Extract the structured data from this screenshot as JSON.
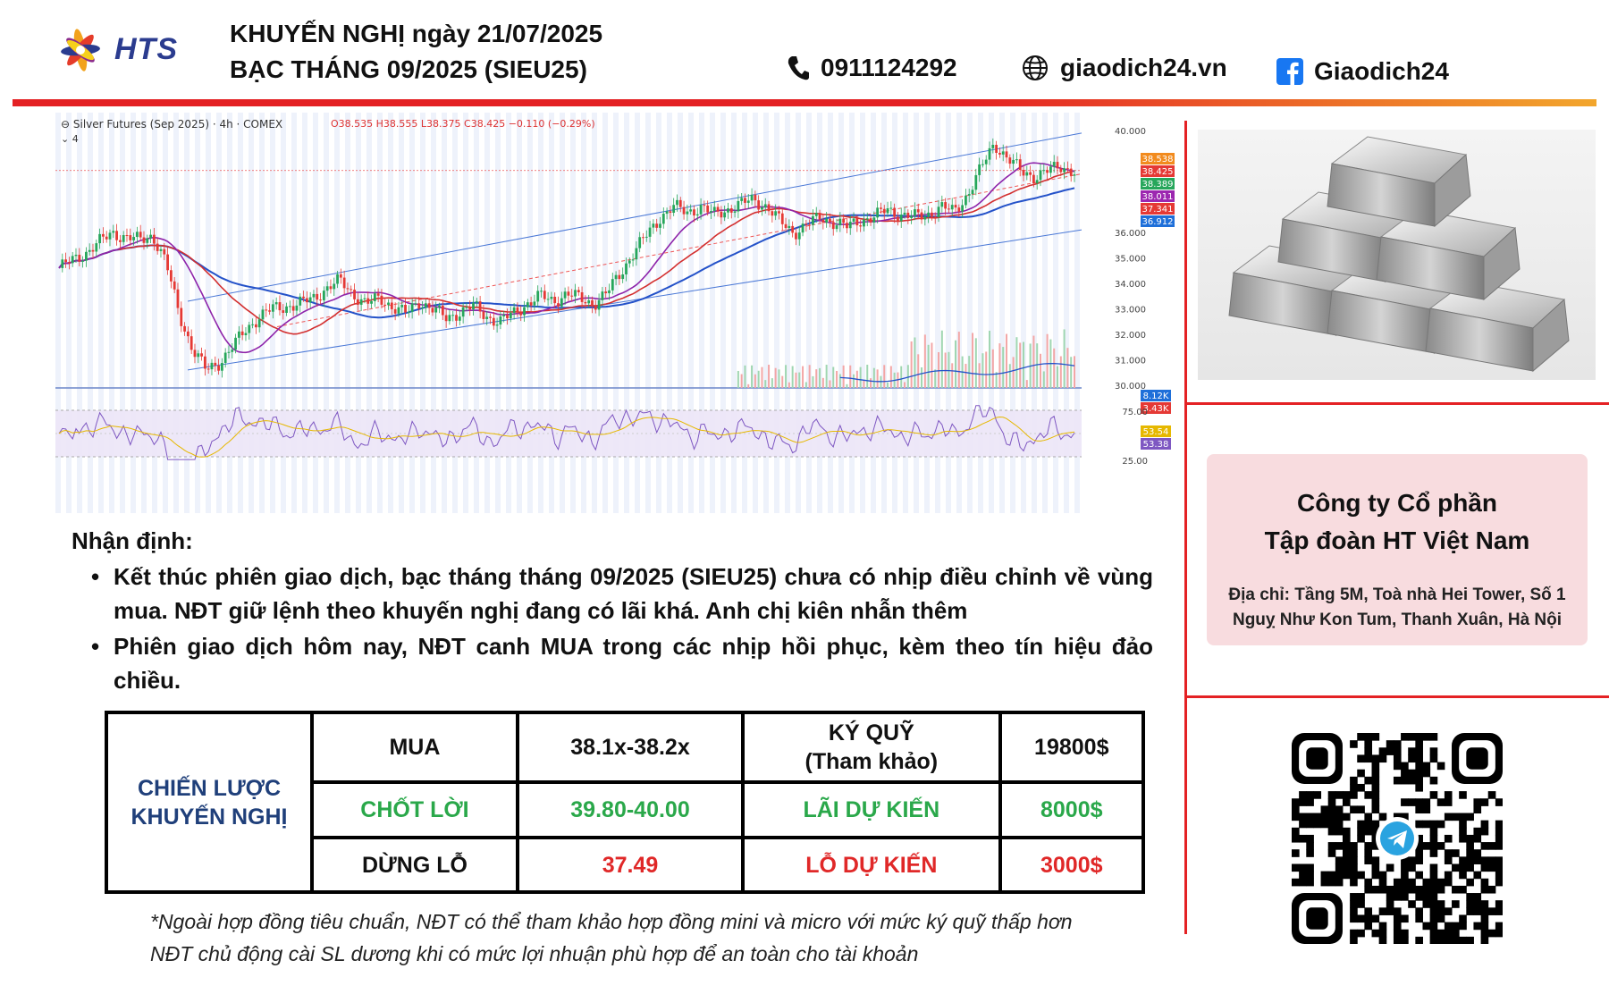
{
  "brand": {
    "logo_text": "HTS"
  },
  "header": {
    "title_line1": "KHUYẾN NGHỊ ngày 21/07/2025",
    "title_line2": "BẠC THÁNG 09/2025 (SIEU25)",
    "phone": "0911124292",
    "website": "giaodich24.vn",
    "facebook": "Giaodich24",
    "icons": [
      "phone-icon",
      "globe-icon",
      "facebook-icon"
    ]
  },
  "chart_data": {
    "type": "candlestick",
    "title": "Silver Futures (Sep 2025) · 4h · COMEX",
    "interval_label": "4",
    "ohlc": {
      "open": "O38.535",
      "high": "H38.555",
      "low": "L38.375",
      "close": "C38.425",
      "change": "−0.110 (−0.29%)"
    },
    "price_axis": [
      "40.000",
      "36.000",
      "35.000",
      "34.000",
      "33.000",
      "32.000",
      "31.000",
      "30.000"
    ],
    "price_labels": [
      {
        "value": "38.538",
        "color": "#f28b1e"
      },
      {
        "value": "38.425",
        "color": "#e53935"
      },
      {
        "value": "38.389",
        "color": "#26a65b"
      },
      {
        "value": "38.011",
        "color": "#9c27b0"
      },
      {
        "value": "37.341",
        "color": "#e53935"
      },
      {
        "value": "36.912",
        "color": "#1e6fd9"
      }
    ],
    "volume_labels": [
      {
        "value": "8.12K",
        "color": "#1e6fd9"
      },
      {
        "value": "3.43K",
        "color": "#e53935"
      }
    ],
    "rsi_axis": [
      "75.00",
      "25.00"
    ],
    "rsi_labels": [
      {
        "value": "53.54",
        "color": "#e6b800"
      },
      {
        "value": "53.38",
        "color": "#7e57c2"
      }
    ],
    "close_path": [
      34.6,
      34.9,
      35.2,
      35.6,
      36.0,
      35.8,
      35.7,
      35.9,
      34.8,
      32.8,
      31.4,
      30.6,
      30.9,
      31.5,
      32.2,
      32.7,
      33.0,
      33.1,
      33.2,
      33.4,
      33.8,
      34.1,
      33.6,
      33.2,
      33.4,
      33.1,
      32.8,
      33.3,
      33.0,
      32.6,
      32.9,
      33.1,
      32.7,
      32.5,
      32.8,
      33.2,
      33.5,
      33.3,
      33.6,
      33.4,
      33.2,
      33.6,
      34.4,
      35.2,
      35.9,
      36.6,
      37.0,
      36.8,
      37.0,
      36.7,
      36.9,
      37.1,
      37.3,
      37.0,
      36.4,
      36.0,
      36.3,
      36.6,
      36.4,
      36.2,
      36.5,
      36.6,
      36.9,
      36.7,
      36.6,
      36.7,
      37.0,
      36.8,
      37.5,
      38.5,
      39.5,
      38.9,
      38.4,
      38.2,
      38.4,
      38.6,
      38.4
    ]
  },
  "analysis": {
    "title": "Nhận định:",
    "bullets": [
      "Kết thúc phiên giao dịch, bạc tháng tháng 09/2025 (SIEU25) chưa có nhịp điều chỉnh về vùng mua. NĐT giữ lệnh theo khuyến nghị đang có lãi khá. Anh chị kiên nhẫn thêm",
      "Phiên giao dịch hôm nay, NĐT canh MUA trong các nhịp hồi phục, kèm theo tín hiệu đảo chiều."
    ]
  },
  "strategy": {
    "label_line1": "CHIẾN LƯỢC",
    "label_line2": "KHUYẾN NGHỊ",
    "buy_label": "MUA",
    "buy_range": "38.1x-38.2x",
    "margin_label_line1": "KÝ QUỸ",
    "margin_label_line2": "(Tham khảo)",
    "margin_value": "19800$",
    "take_profit_label": "CHỐT LỜI",
    "take_profit_range": "39.80-40.00",
    "expected_profit_label": "LÃI DỰ KIẾN",
    "expected_profit_value": "8000$",
    "stop_loss_label": "DỪNG LỖ",
    "stop_loss_value": "37.49",
    "expected_loss_label": "LỖ DỰ KIẾN",
    "expected_loss_value": "3000$"
  },
  "notes": [
    "*Ngoài hợp đồng tiêu chuẩn, NĐT có thể tham khảo hợp đồng mini và micro với mức ký quỹ thấp hơn",
    "NĐT chủ động cài SL dương khi có mức lợi nhuận phù hợp để an toàn cho tài khoản"
  ],
  "company": {
    "name_line1": "Công ty Cổ phần",
    "name_line2": "Tập đoàn HT Việt Nam",
    "address_line1": "Địa chỉ: Tầng 5M, Toà nhà Hei Tower, Số 1",
    "address_line2": "Nguỵ Như Kon Tum, Thanh Xuân, Hà Nội"
  },
  "images": {
    "product": "silver-bars-image",
    "qr": "telegram-qr-code"
  }
}
